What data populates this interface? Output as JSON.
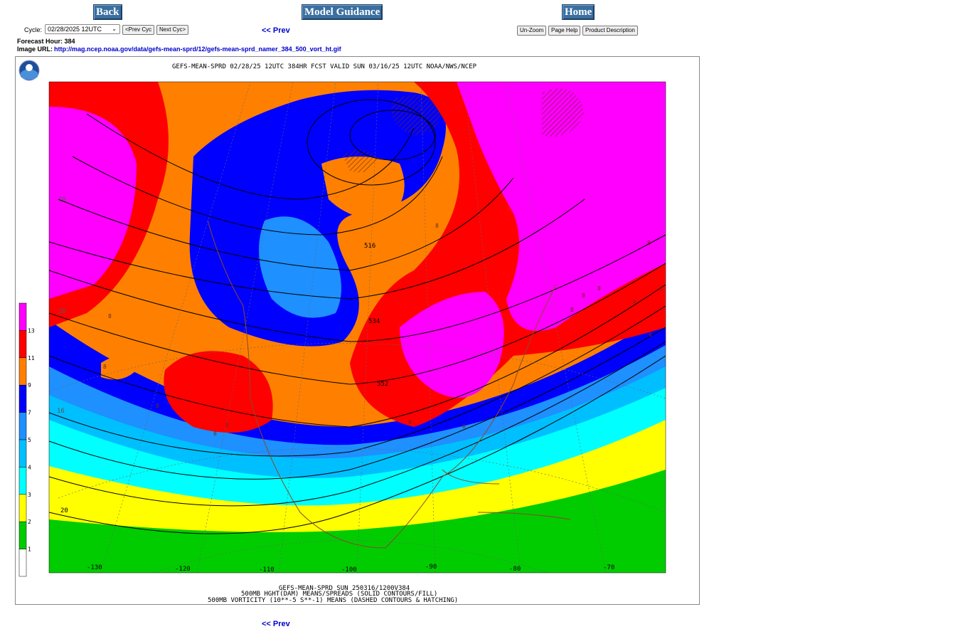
{
  "nav": {
    "back": "Back",
    "model_guidance": "Model Guidance",
    "home": "Home"
  },
  "cycle": {
    "label": "Cycle:",
    "selected": "02/28/2025 12UTC",
    "prev_cyc": "<Prev Cyc",
    "next_cyc": "Next Cyc>"
  },
  "prev_link": "<< Prev",
  "tools": {
    "unzoom": "Un-Zoom",
    "page_help": "Page Help",
    "product_description": "Product Description"
  },
  "forecast_hour": "Forecast Hour: 384",
  "image_url": {
    "label": "Image URL:",
    "value": "http://mag.ncep.noaa.gov/data/gefs-mean-sprd/12/gefs-mean-sprd_namer_384_500_vort_ht.gif"
  },
  "map": {
    "header": "GEFS-MEAN-SPRD 02/28/25 12UTC 384HR FCST VALID SUN 03/16/25 12UTC NOAA/NWS/NCEP",
    "footer_lines": [
      "GEFS-MEAN-SPRD SUN 250316/1200V384",
      "500MB HGHT(DAM) MEANS/SPREADS (SOLID CONTOURS/FILL)",
      "500MB VORTICITY (10**-5 S**-1) MEANS (DASHED CONTOURS & HATCHING)"
    ],
    "contour_labels": [
      "516",
      "534",
      "552",
      "8",
      "8",
      "8",
      "8",
      "8",
      "8",
      "8",
      "8",
      "8",
      "8",
      "8",
      "8",
      "8",
      "8",
      "20",
      "20",
      "20",
      "8",
      "16"
    ],
    "lon_labels": [
      "-130",
      "-120",
      "-110",
      "-100",
      "-90",
      "-80",
      "-70"
    ],
    "colorbar": {
      "labels": [
        "13",
        "11",
        "9",
        "7",
        "5",
        "4",
        "3",
        "2",
        "1"
      ],
      "colors": [
        "#ff00ff",
        "#ff0000",
        "#ff8000",
        "#0000ff",
        "#1e90ff",
        "#00bfff",
        "#00ffff",
        "#ffff00",
        "#00cc00",
        "#ffffff"
      ]
    }
  },
  "bottom_prev_link": "<< Prev"
}
